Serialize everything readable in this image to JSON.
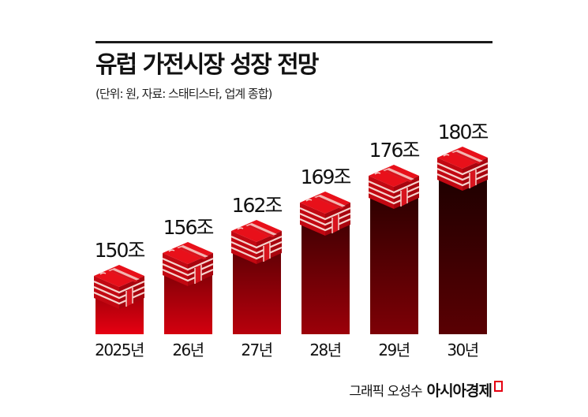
{
  "header": {
    "title": "유럽 가전시장 성장 전망",
    "subtitle": "(단위: 원, 자료: 스태티스타, 업계 종합)"
  },
  "credit": {
    "text": "그래픽 오성수",
    "brand": "아시아경제"
  },
  "colors": {
    "accent_red": "#e60012",
    "dark_red": "#3a0000",
    "stack_red": "#d8141e",
    "stack_stripe": "#f6d2cc"
  },
  "bars": [
    {
      "year_label": "2025년",
      "value_label": "150조"
    },
    {
      "year_label": "26년",
      "value_label": "156조"
    },
    {
      "year_label": "27년",
      "value_label": "162조"
    },
    {
      "year_label": "28년",
      "value_label": "169조"
    },
    {
      "year_label": "29년",
      "value_label": "176조"
    },
    {
      "year_label": "30년",
      "value_label": "180조"
    }
  ],
  "chart_data": {
    "type": "bar",
    "title": "유럽 가전시장 성장 전망",
    "subtitle": "(단위: 원, 자료: 스태티스타, 업계 종합)",
    "categories": [
      "2025년",
      "26년",
      "27년",
      "28년",
      "29년",
      "30년"
    ],
    "values": [
      150,
      156,
      162,
      169,
      176,
      180
    ],
    "value_labels": [
      "150조",
      "156조",
      "162조",
      "169조",
      "176조",
      "180조"
    ],
    "unit": "조 원",
    "xlabel": "",
    "ylabel": "",
    "grid": false,
    "legend": null
  }
}
